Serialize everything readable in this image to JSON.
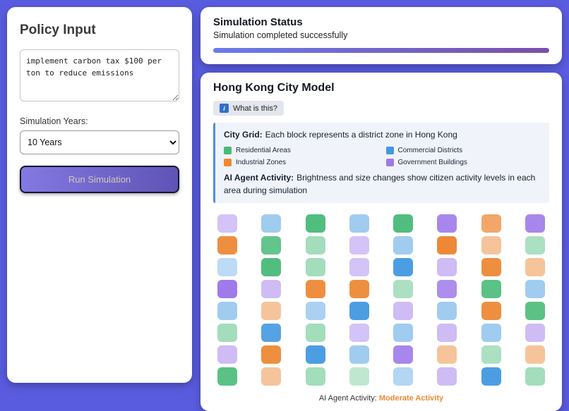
{
  "left_panel": {
    "title": "Policy Input",
    "textarea_value": "implement carbon tax $100 per ton to reduce emissions",
    "years_label": "Simulation Years:",
    "years_value": "10 Years",
    "run_button": "Run Simulation"
  },
  "status_panel": {
    "title": "Simulation Status",
    "subtitle": "Simulation completed successfully",
    "progress_percent": 100
  },
  "model_panel": {
    "title": "Hong Kong City Model",
    "info_chip": {
      "icon": "i",
      "label": "What is this?"
    },
    "info_box": {
      "grid_label": "City Grid:",
      "grid_text": "Each block represents a district zone in Hong Kong",
      "legend": [
        {
          "label": "Residential Areas",
          "color": "#48BB78"
        },
        {
          "label": "Commercial Districts",
          "color": "#4299E1"
        },
        {
          "label": "Industrial Zones",
          "color": "#ED8936"
        },
        {
          "label": "Government Buildings",
          "color": "#9F7AEA"
        }
      ],
      "activity_label": "AI Agent Activity:",
      "activity_text": "Brightness and size changes show citizen activity levels in each area during simulation"
    },
    "footer": {
      "label": "AI Agent Activity:",
      "value": "Moderate Activity",
      "value_color": "#ED8936"
    }
  },
  "city_grid": {
    "colors": {
      "R": "#48BB78",
      "C": "#4299E1",
      "I": "#ED8936",
      "G": "#9F7AEA"
    },
    "cells": [
      [
        "G:0.45",
        "C:0.5",
        "R:0.95",
        "C:0.5",
        "R:0.95",
        "G:0.9",
        "I:0.75",
        "G:0.9"
      ],
      [
        "I:0.95",
        "R:0.85",
        "R:0.5",
        "G:0.45",
        "C:0.5",
        "I:1",
        "I:0.5",
        "R:0.45"
      ],
      [
        "C:0.35",
        "R:0.95",
        "R:0.5",
        "G:0.45",
        "C:0.95",
        "G:0.5",
        "I:0.95",
        "I:0.5"
      ],
      [
        "G:1",
        "G:0.5",
        "I:0.95",
        "I:0.95",
        "R:0.45",
        "G:0.85",
        "R:0.9",
        "C:0.5"
      ],
      [
        "C:0.5",
        "I:0.5",
        "C:0.45",
        "C:0.95",
        "G:0.5",
        "C:0.5",
        "I:0.95",
        "R:0.9"
      ],
      [
        "R:0.5",
        "C:0.9",
        "R:0.5",
        "G:0.45",
        "C:0.5",
        "G:0.5",
        "C:0.5",
        "G:0.5"
      ],
      [
        "G:0.5",
        "I:0.95",
        "C:0.95",
        "C:0.5",
        "G:0.9",
        "I:0.5",
        "R:0.45",
        "I:0.5"
      ],
      [
        "R:0.9",
        "I:0.5",
        "R:0.5",
        "R:0.35",
        "C:0.4",
        "G:0.5",
        "C:0.95",
        "R:0.5"
      ]
    ]
  }
}
